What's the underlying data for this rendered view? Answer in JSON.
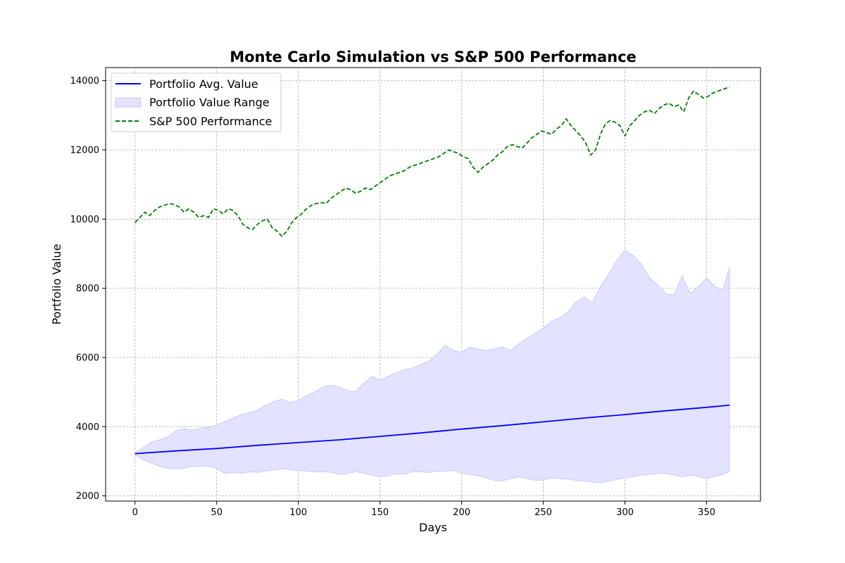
{
  "chart_data": {
    "type": "line",
    "title": "Monte Carlo Simulation vs S&P 500 Performance",
    "xlabel": "Days",
    "ylabel": "Portfolio Value",
    "xlim": [
      -18,
      383
    ],
    "ylim": [
      1850,
      14380
    ],
    "x_ticks": [
      0,
      50,
      100,
      150,
      200,
      250,
      300,
      350
    ],
    "y_ticks": [
      2000,
      4000,
      6000,
      8000,
      10000,
      12000,
      14000
    ],
    "grid": true,
    "legend_position": "upper-left",
    "colors": {
      "avg": "#0000ff",
      "range_fill": "#e3e3ff",
      "range_edge": "#c9c9f7",
      "sp500": "#008000"
    },
    "legend": [
      {
        "label": "Portfolio Avg. Value",
        "kind": "line",
        "series": "avg"
      },
      {
        "label": "Portfolio Value Range",
        "kind": "patch",
        "series": "range"
      },
      {
        "label": "S&P 500 Performance",
        "kind": "dashed",
        "series": "sp500"
      }
    ],
    "series": [
      {
        "name": "Portfolio Avg. Value",
        "x": [
          0,
          25,
          50,
          75,
          100,
          125,
          150,
          175,
          200,
          225,
          250,
          275,
          300,
          325,
          350,
          364
        ],
        "y": [
          3220,
          3300,
          3370,
          3460,
          3540,
          3620,
          3720,
          3820,
          3930,
          4030,
          4140,
          4250,
          4350,
          4460,
          4560,
          4620
        ]
      },
      {
        "name": "Portfolio Value Range",
        "x": [
          0,
          5,
          10,
          15,
          20,
          25,
          30,
          35,
          40,
          45,
          50,
          55,
          60,
          65,
          70,
          75,
          80,
          85,
          90,
          95,
          100,
          105,
          110,
          115,
          120,
          125,
          130,
          135,
          140,
          145,
          150,
          155,
          160,
          165,
          170,
          175,
          180,
          185,
          190,
          195,
          200,
          205,
          210,
          215,
          220,
          225,
          230,
          235,
          240,
          245,
          250,
          255,
          260,
          265,
          270,
          275,
          280,
          285,
          290,
          295,
          300,
          305,
          310,
          315,
          320,
          325,
          330,
          335,
          340,
          345,
          350,
          355,
          360,
          364
        ],
        "upper": [
          3230,
          3400,
          3550,
          3620,
          3700,
          3880,
          3950,
          3900,
          3950,
          3980,
          4050,
          4150,
          4250,
          4350,
          4400,
          4480,
          4620,
          4720,
          4800,
          4700,
          4760,
          4900,
          5000,
          5150,
          5200,
          5150,
          5050,
          5000,
          5250,
          5450,
          5350,
          5450,
          5550,
          5650,
          5700,
          5800,
          5900,
          6100,
          6350,
          6200,
          6150,
          6300,
          6250,
          6200,
          6250,
          6300,
          6200,
          6400,
          6550,
          6700,
          6850,
          7050,
          7150,
          7300,
          7600,
          7750,
          7600,
          8050,
          8400,
          8800,
          9100,
          8950,
          8700,
          8300,
          8100,
          7850,
          7800,
          8350,
          7850,
          8050,
          8300,
          8050,
          7950,
          8600
        ],
        "lower": [
          3200,
          3050,
          2950,
          2850,
          2800,
          2780,
          2800,
          2850,
          2850,
          2860,
          2800,
          2650,
          2680,
          2650,
          2700,
          2680,
          2720,
          2750,
          2780,
          2760,
          2730,
          2720,
          2690,
          2700,
          2680,
          2620,
          2640,
          2700,
          2650,
          2600,
          2560,
          2580,
          2640,
          2620,
          2700,
          2700,
          2680,
          2710,
          2720,
          2740,
          2650,
          2620,
          2580,
          2520,
          2450,
          2430,
          2500,
          2550,
          2500,
          2450,
          2460,
          2520,
          2500,
          2480,
          2450,
          2430,
          2400,
          2380,
          2420,
          2480,
          2520,
          2550,
          2600,
          2620,
          2650,
          2650,
          2600,
          2550,
          2600,
          2560,
          2500,
          2560,
          2620,
          2700
        ]
      },
      {
        "name": "S&P 500 Performance",
        "x": [
          0,
          3,
          6,
          9,
          12,
          15,
          18,
          21,
          24,
          27,
          30,
          33,
          36,
          39,
          42,
          45,
          48,
          51,
          54,
          57,
          60,
          63,
          66,
          69,
          72,
          75,
          78,
          81,
          84,
          87,
          90,
          93,
          96,
          99,
          102,
          105,
          108,
          111,
          114,
          117,
          120,
          123,
          126,
          129,
          132,
          135,
          138,
          141,
          144,
          147,
          150,
          153,
          156,
          159,
          162,
          165,
          168,
          171,
          174,
          177,
          180,
          183,
          186,
          189,
          192,
          195,
          198,
          201,
          204,
          207,
          210,
          213,
          216,
          219,
          222,
          225,
          228,
          231,
          234,
          237,
          240,
          243,
          246,
          249,
          252,
          255,
          258,
          261,
          264,
          267,
          270,
          273,
          276,
          279,
          282,
          285,
          288,
          291,
          294,
          297,
          300,
          303,
          306,
          309,
          312,
          315,
          318,
          321,
          324,
          327,
          330,
          333,
          336,
          339,
          342,
          345,
          348,
          351,
          354,
          357,
          360,
          364
        ],
        "y": [
          9900,
          10050,
          10200,
          10100,
          10250,
          10350,
          10400,
          10450,
          10420,
          10350,
          10200,
          10300,
          10200,
          10050,
          10100,
          10050,
          10300,
          10250,
          10150,
          10300,
          10250,
          10100,
          9850,
          9750,
          9700,
          9850,
          9950,
          10000,
          9750,
          9650,
          9500,
          9650,
          9900,
          10050,
          10150,
          10300,
          10400,
          10450,
          10480,
          10450,
          10600,
          10700,
          10800,
          10900,
          10850,
          10750,
          10800,
          10900,
          10850,
          10950,
          11050,
          11150,
          11250,
          11300,
          11350,
          11400,
          11500,
          11550,
          11600,
          11650,
          11700,
          11750,
          11800,
          11900,
          12000,
          11950,
          11900,
          11800,
          11750,
          11500,
          11350,
          11500,
          11600,
          11700,
          11850,
          11950,
          12100,
          12150,
          12100,
          12050,
          12200,
          12350,
          12450,
          12550,
          12500,
          12450,
          12600,
          12700,
          12900,
          12700,
          12550,
          12400,
          12200,
          11850,
          12000,
          12450,
          12750,
          12850,
          12800,
          12700,
          12400,
          12700,
          12850,
          13000,
          13100,
          13150,
          13050,
          13200,
          13300,
          13350,
          13250,
          13300,
          13100,
          13500,
          13700,
          13600,
          13500,
          13550,
          13650,
          13700,
          13750,
          13820
        ]
      }
    ]
  }
}
